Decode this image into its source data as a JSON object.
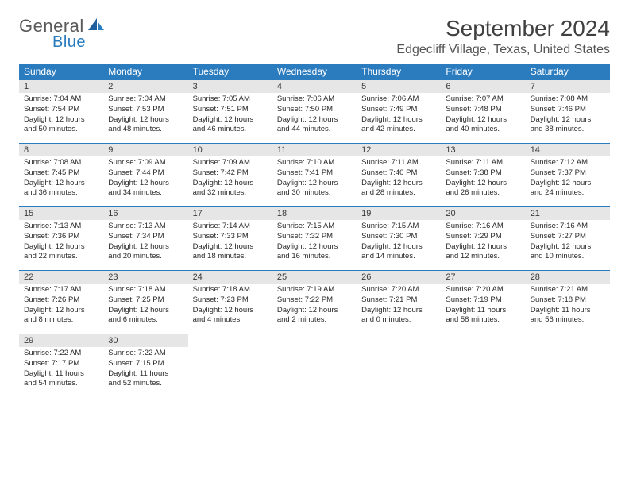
{
  "brand": {
    "name1": "General",
    "name2": "Blue"
  },
  "title": "September 2024",
  "location": "Edgecliff Village, Texas, United States",
  "colors": {
    "header_bg": "#2b7bbf",
    "daynum_bg": "#e6e6e6",
    "border": "#2b7bbf"
  },
  "weekdays": [
    "Sunday",
    "Monday",
    "Tuesday",
    "Wednesday",
    "Thursday",
    "Friday",
    "Saturday"
  ],
  "weeks": [
    [
      {
        "n": "1",
        "sr": "Sunrise: 7:04 AM",
        "ss": "Sunset: 7:54 PM",
        "d1": "Daylight: 12 hours",
        "d2": "and 50 minutes."
      },
      {
        "n": "2",
        "sr": "Sunrise: 7:04 AM",
        "ss": "Sunset: 7:53 PM",
        "d1": "Daylight: 12 hours",
        "d2": "and 48 minutes."
      },
      {
        "n": "3",
        "sr": "Sunrise: 7:05 AM",
        "ss": "Sunset: 7:51 PM",
        "d1": "Daylight: 12 hours",
        "d2": "and 46 minutes."
      },
      {
        "n": "4",
        "sr": "Sunrise: 7:06 AM",
        "ss": "Sunset: 7:50 PM",
        "d1": "Daylight: 12 hours",
        "d2": "and 44 minutes."
      },
      {
        "n": "5",
        "sr": "Sunrise: 7:06 AM",
        "ss": "Sunset: 7:49 PM",
        "d1": "Daylight: 12 hours",
        "d2": "and 42 minutes."
      },
      {
        "n": "6",
        "sr": "Sunrise: 7:07 AM",
        "ss": "Sunset: 7:48 PM",
        "d1": "Daylight: 12 hours",
        "d2": "and 40 minutes."
      },
      {
        "n": "7",
        "sr": "Sunrise: 7:08 AM",
        "ss": "Sunset: 7:46 PM",
        "d1": "Daylight: 12 hours",
        "d2": "and 38 minutes."
      }
    ],
    [
      {
        "n": "8",
        "sr": "Sunrise: 7:08 AM",
        "ss": "Sunset: 7:45 PM",
        "d1": "Daylight: 12 hours",
        "d2": "and 36 minutes."
      },
      {
        "n": "9",
        "sr": "Sunrise: 7:09 AM",
        "ss": "Sunset: 7:44 PM",
        "d1": "Daylight: 12 hours",
        "d2": "and 34 minutes."
      },
      {
        "n": "10",
        "sr": "Sunrise: 7:09 AM",
        "ss": "Sunset: 7:42 PM",
        "d1": "Daylight: 12 hours",
        "d2": "and 32 minutes."
      },
      {
        "n": "11",
        "sr": "Sunrise: 7:10 AM",
        "ss": "Sunset: 7:41 PM",
        "d1": "Daylight: 12 hours",
        "d2": "and 30 minutes."
      },
      {
        "n": "12",
        "sr": "Sunrise: 7:11 AM",
        "ss": "Sunset: 7:40 PM",
        "d1": "Daylight: 12 hours",
        "d2": "and 28 minutes."
      },
      {
        "n": "13",
        "sr": "Sunrise: 7:11 AM",
        "ss": "Sunset: 7:38 PM",
        "d1": "Daylight: 12 hours",
        "d2": "and 26 minutes."
      },
      {
        "n": "14",
        "sr": "Sunrise: 7:12 AM",
        "ss": "Sunset: 7:37 PM",
        "d1": "Daylight: 12 hours",
        "d2": "and 24 minutes."
      }
    ],
    [
      {
        "n": "15",
        "sr": "Sunrise: 7:13 AM",
        "ss": "Sunset: 7:36 PM",
        "d1": "Daylight: 12 hours",
        "d2": "and 22 minutes."
      },
      {
        "n": "16",
        "sr": "Sunrise: 7:13 AM",
        "ss": "Sunset: 7:34 PM",
        "d1": "Daylight: 12 hours",
        "d2": "and 20 minutes."
      },
      {
        "n": "17",
        "sr": "Sunrise: 7:14 AM",
        "ss": "Sunset: 7:33 PM",
        "d1": "Daylight: 12 hours",
        "d2": "and 18 minutes."
      },
      {
        "n": "18",
        "sr": "Sunrise: 7:15 AM",
        "ss": "Sunset: 7:32 PM",
        "d1": "Daylight: 12 hours",
        "d2": "and 16 minutes."
      },
      {
        "n": "19",
        "sr": "Sunrise: 7:15 AM",
        "ss": "Sunset: 7:30 PM",
        "d1": "Daylight: 12 hours",
        "d2": "and 14 minutes."
      },
      {
        "n": "20",
        "sr": "Sunrise: 7:16 AM",
        "ss": "Sunset: 7:29 PM",
        "d1": "Daylight: 12 hours",
        "d2": "and 12 minutes."
      },
      {
        "n": "21",
        "sr": "Sunrise: 7:16 AM",
        "ss": "Sunset: 7:27 PM",
        "d1": "Daylight: 12 hours",
        "d2": "and 10 minutes."
      }
    ],
    [
      {
        "n": "22",
        "sr": "Sunrise: 7:17 AM",
        "ss": "Sunset: 7:26 PM",
        "d1": "Daylight: 12 hours",
        "d2": "and 8 minutes."
      },
      {
        "n": "23",
        "sr": "Sunrise: 7:18 AM",
        "ss": "Sunset: 7:25 PM",
        "d1": "Daylight: 12 hours",
        "d2": "and 6 minutes."
      },
      {
        "n": "24",
        "sr": "Sunrise: 7:18 AM",
        "ss": "Sunset: 7:23 PM",
        "d1": "Daylight: 12 hours",
        "d2": "and 4 minutes."
      },
      {
        "n": "25",
        "sr": "Sunrise: 7:19 AM",
        "ss": "Sunset: 7:22 PM",
        "d1": "Daylight: 12 hours",
        "d2": "and 2 minutes."
      },
      {
        "n": "26",
        "sr": "Sunrise: 7:20 AM",
        "ss": "Sunset: 7:21 PM",
        "d1": "Daylight: 12 hours",
        "d2": "and 0 minutes."
      },
      {
        "n": "27",
        "sr": "Sunrise: 7:20 AM",
        "ss": "Sunset: 7:19 PM",
        "d1": "Daylight: 11 hours",
        "d2": "and 58 minutes."
      },
      {
        "n": "28",
        "sr": "Sunrise: 7:21 AM",
        "ss": "Sunset: 7:18 PM",
        "d1": "Daylight: 11 hours",
        "d2": "and 56 minutes."
      }
    ],
    [
      {
        "n": "29",
        "sr": "Sunrise: 7:22 AM",
        "ss": "Sunset: 7:17 PM",
        "d1": "Daylight: 11 hours",
        "d2": "and 54 minutes."
      },
      {
        "n": "30",
        "sr": "Sunrise: 7:22 AM",
        "ss": "Sunset: 7:15 PM",
        "d1": "Daylight: 11 hours",
        "d2": "and 52 minutes."
      },
      null,
      null,
      null,
      null,
      null
    ]
  ]
}
